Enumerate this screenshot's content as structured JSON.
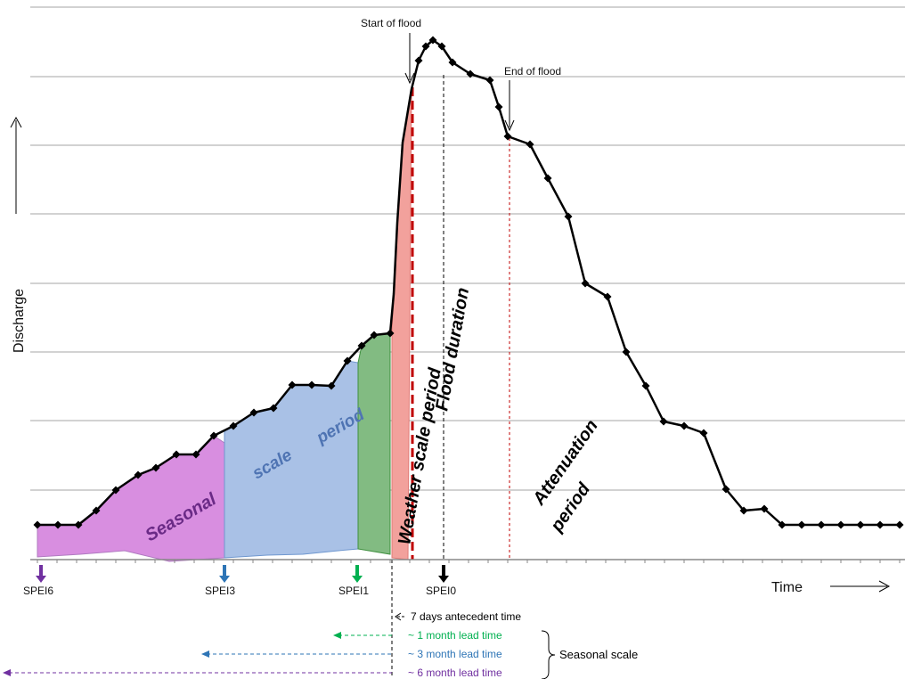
{
  "labels": {
    "y_axis": "Discharge",
    "x_axis": "Time",
    "start_of_flood": "Start of flood",
    "end_of_flood": "End of flood",
    "seasonal": "Seasonal",
    "scale": "scale",
    "period": "period",
    "weather_scale_period": "Weather scale period",
    "flood_duration": "Flood duration",
    "attenuation": "Attenuation",
    "attenuation_period": "period"
  },
  "markers": [
    {
      "label": "SPEI6",
      "color": "#7030a0"
    },
    {
      "label": "SPEI3",
      "color": "#2e75b6"
    },
    {
      "label": "SPEI1",
      "color": "#00b050"
    },
    {
      "label": "SPEI0",
      "color": "#000000"
    }
  ],
  "lead_times": [
    {
      "label": "7 days antecedent time",
      "color": "#000000"
    },
    {
      "label": "~ 1 month lead time",
      "color": "#00b050"
    },
    {
      "label": "~ 3 month lead time",
      "color": "#2e75b6"
    },
    {
      "label": "~ 6 month lead time",
      "color": "#7030a0"
    }
  ],
  "brace_label": "Seasonal scale",
  "colors": {
    "seasonal_fill": "#d88ee0",
    "scale_fill": "#a9c1e6",
    "month_fill": "#82bb82",
    "weather_fill": "#f2a19c",
    "weather_line": "#c00000",
    "grid": "#a6a6a6"
  }
}
